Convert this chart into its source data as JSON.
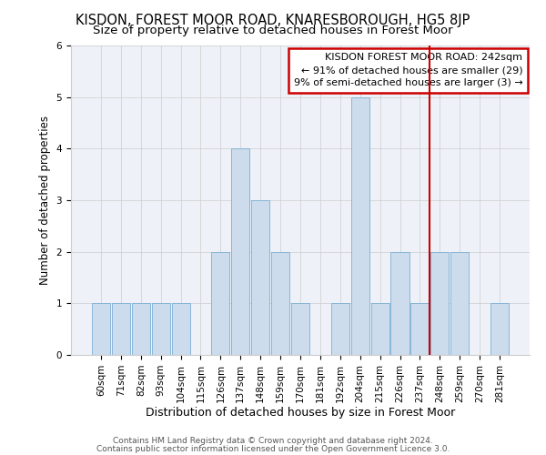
{
  "title": "KISDON, FOREST MOOR ROAD, KNARESBOROUGH, HG5 8JP",
  "subtitle": "Size of property relative to detached houses in Forest Moor",
  "xlabel": "Distribution of detached houses by size in Forest Moor",
  "ylabel": "Number of detached properties",
  "categories": [
    "60sqm",
    "71sqm",
    "82sqm",
    "93sqm",
    "104sqm",
    "115sqm",
    "126sqm",
    "137sqm",
    "148sqm",
    "159sqm",
    "170sqm",
    "181sqm",
    "192sqm",
    "204sqm",
    "215sqm",
    "226sqm",
    "237sqm",
    "248sqm",
    "259sqm",
    "270sqm",
    "281sqm"
  ],
  "values": [
    1,
    1,
    1,
    1,
    1,
    0,
    2,
    4,
    3,
    2,
    1,
    0,
    1,
    5,
    1,
    2,
    1,
    2,
    2,
    0,
    1
  ],
  "bar_color": "#ccdcec",
  "bar_edge_color": "#7bafd4",
  "vline_x_index": 16,
  "vline_color": "#cc0000",
  "annotation_box_text": "KISDON FOREST MOOR ROAD: 242sqm\n← 91% of detached houses are smaller (29)\n9% of semi-detached houses are larger (3) →",
  "annotation_box_facecolor": "white",
  "annotation_box_edgecolor": "#cc0000",
  "ylim": [
    0,
    6
  ],
  "yticks": [
    0,
    1,
    2,
    3,
    4,
    5,
    6
  ],
  "grid_color": "#cccccc",
  "background_color": "#eef2f8",
  "footer_line1": "Contains HM Land Registry data © Crown copyright and database right 2024.",
  "footer_line2": "Contains public sector information licensed under the Open Government Licence 3.0.",
  "title_fontsize": 10.5,
  "subtitle_fontsize": 9.5,
  "xlabel_fontsize": 9,
  "ylabel_fontsize": 8.5,
  "tick_fontsize": 7.5,
  "annot_fontsize": 8,
  "footer_fontsize": 6.5
}
